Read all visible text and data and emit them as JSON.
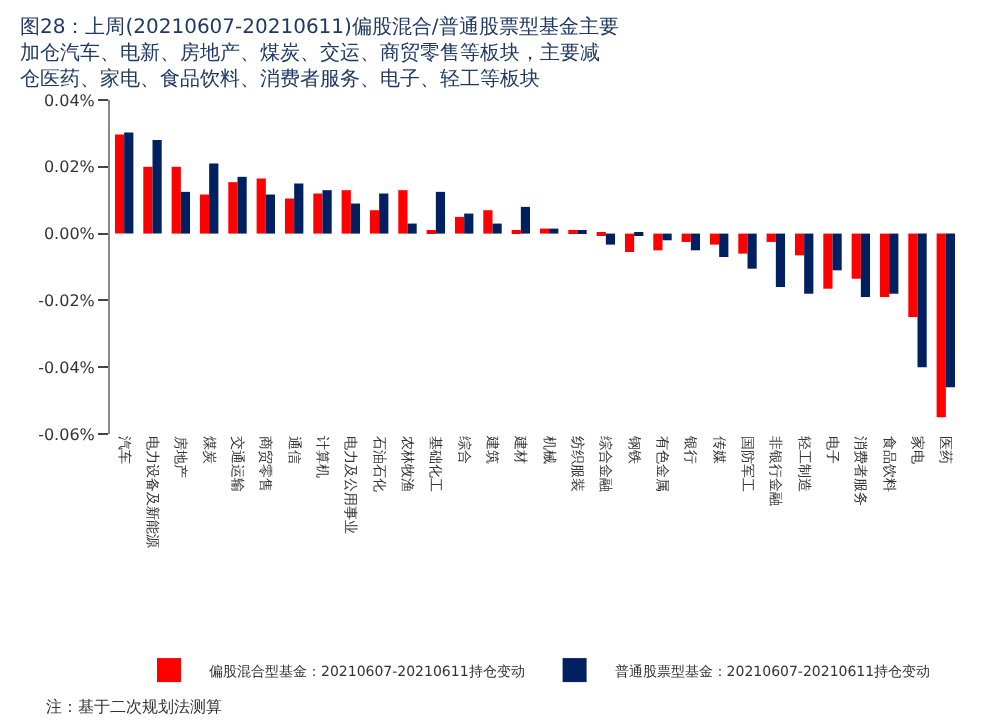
{
  "chart_data": {
    "type": "bar",
    "title": "图28：上周(20210607-20210611)偏股混合/普通股票型基金主要加仓汽车、电新、房地产、煤炭、交运、商贸零售等板块，主要减仓医药、家电、食品饮料、消费者服务、电子、轻工等板块",
    "categories": [
      "汽车",
      "电力设备及新能源",
      "房地产",
      "煤炭",
      "交通运输",
      "商贸零售",
      "通信",
      "计算机",
      "电力及公用事业",
      "石油石化",
      "农林牧渔",
      "基础化工",
      "综合",
      "建筑",
      "建材",
      "机械",
      "纺织服装",
      "综合金融",
      "钢铁",
      "有色金属",
      "银行",
      "传媒",
      "国防军工",
      "非银行金融",
      "轻工制造",
      "电子",
      "消费者服务",
      "食品饮料",
      "家电",
      "医药"
    ],
    "series": [
      {
        "name": "偏股混合型基金：20210607-20210611持仓变动",
        "color": "#ff0000",
        "values": [
          0.0297,
          0.02,
          0.02,
          0.0117,
          0.0154,
          0.0165,
          0.0105,
          0.012,
          0.013,
          0.007,
          0.013,
          0.0005,
          0.005,
          0.007,
          0.001,
          0.0015,
          0.001,
          -0.0005,
          -0.0055,
          -0.005,
          -0.0025,
          -0.0033,
          -0.006,
          -0.0025,
          -0.0065,
          -0.0165,
          -0.0135,
          -0.019,
          -0.025,
          -0.055
        ]
      },
      {
        "name": "普通股票型基金：20210607-20210611持仓变动",
        "color": "#002060",
        "values": [
          0.0303,
          0.028,
          0.0125,
          0.021,
          0.017,
          0.0117,
          0.015,
          0.013,
          0.009,
          0.012,
          0.003,
          0.0125,
          0.006,
          0.003,
          0.008,
          0.0015,
          0.001,
          -0.0033,
          -0.0005,
          -0.002,
          -0.005,
          -0.007,
          -0.0105,
          -0.016,
          -0.018,
          -0.011,
          -0.019,
          -0.018,
          -0.04,
          -0.046
        ]
      }
    ],
    "ylim": [
      -0.06,
      0.04
    ],
    "yticks": [
      {
        "value": 0.04,
        "label": "0.04%"
      },
      {
        "value": 0.02,
        "label": "0.02%"
      },
      {
        "value": 0,
        "label": "0.00%"
      },
      {
        "value": -0.02,
        "label": "-0.02%"
      },
      {
        "value": -0.04,
        "label": "-0.04%"
      },
      {
        "value": -0.06,
        "label": "-0.06%"
      }
    ],
    "grid": false,
    "legend": "bottom",
    "annotations": [
      "注：基于二次规划法测算"
    ]
  }
}
